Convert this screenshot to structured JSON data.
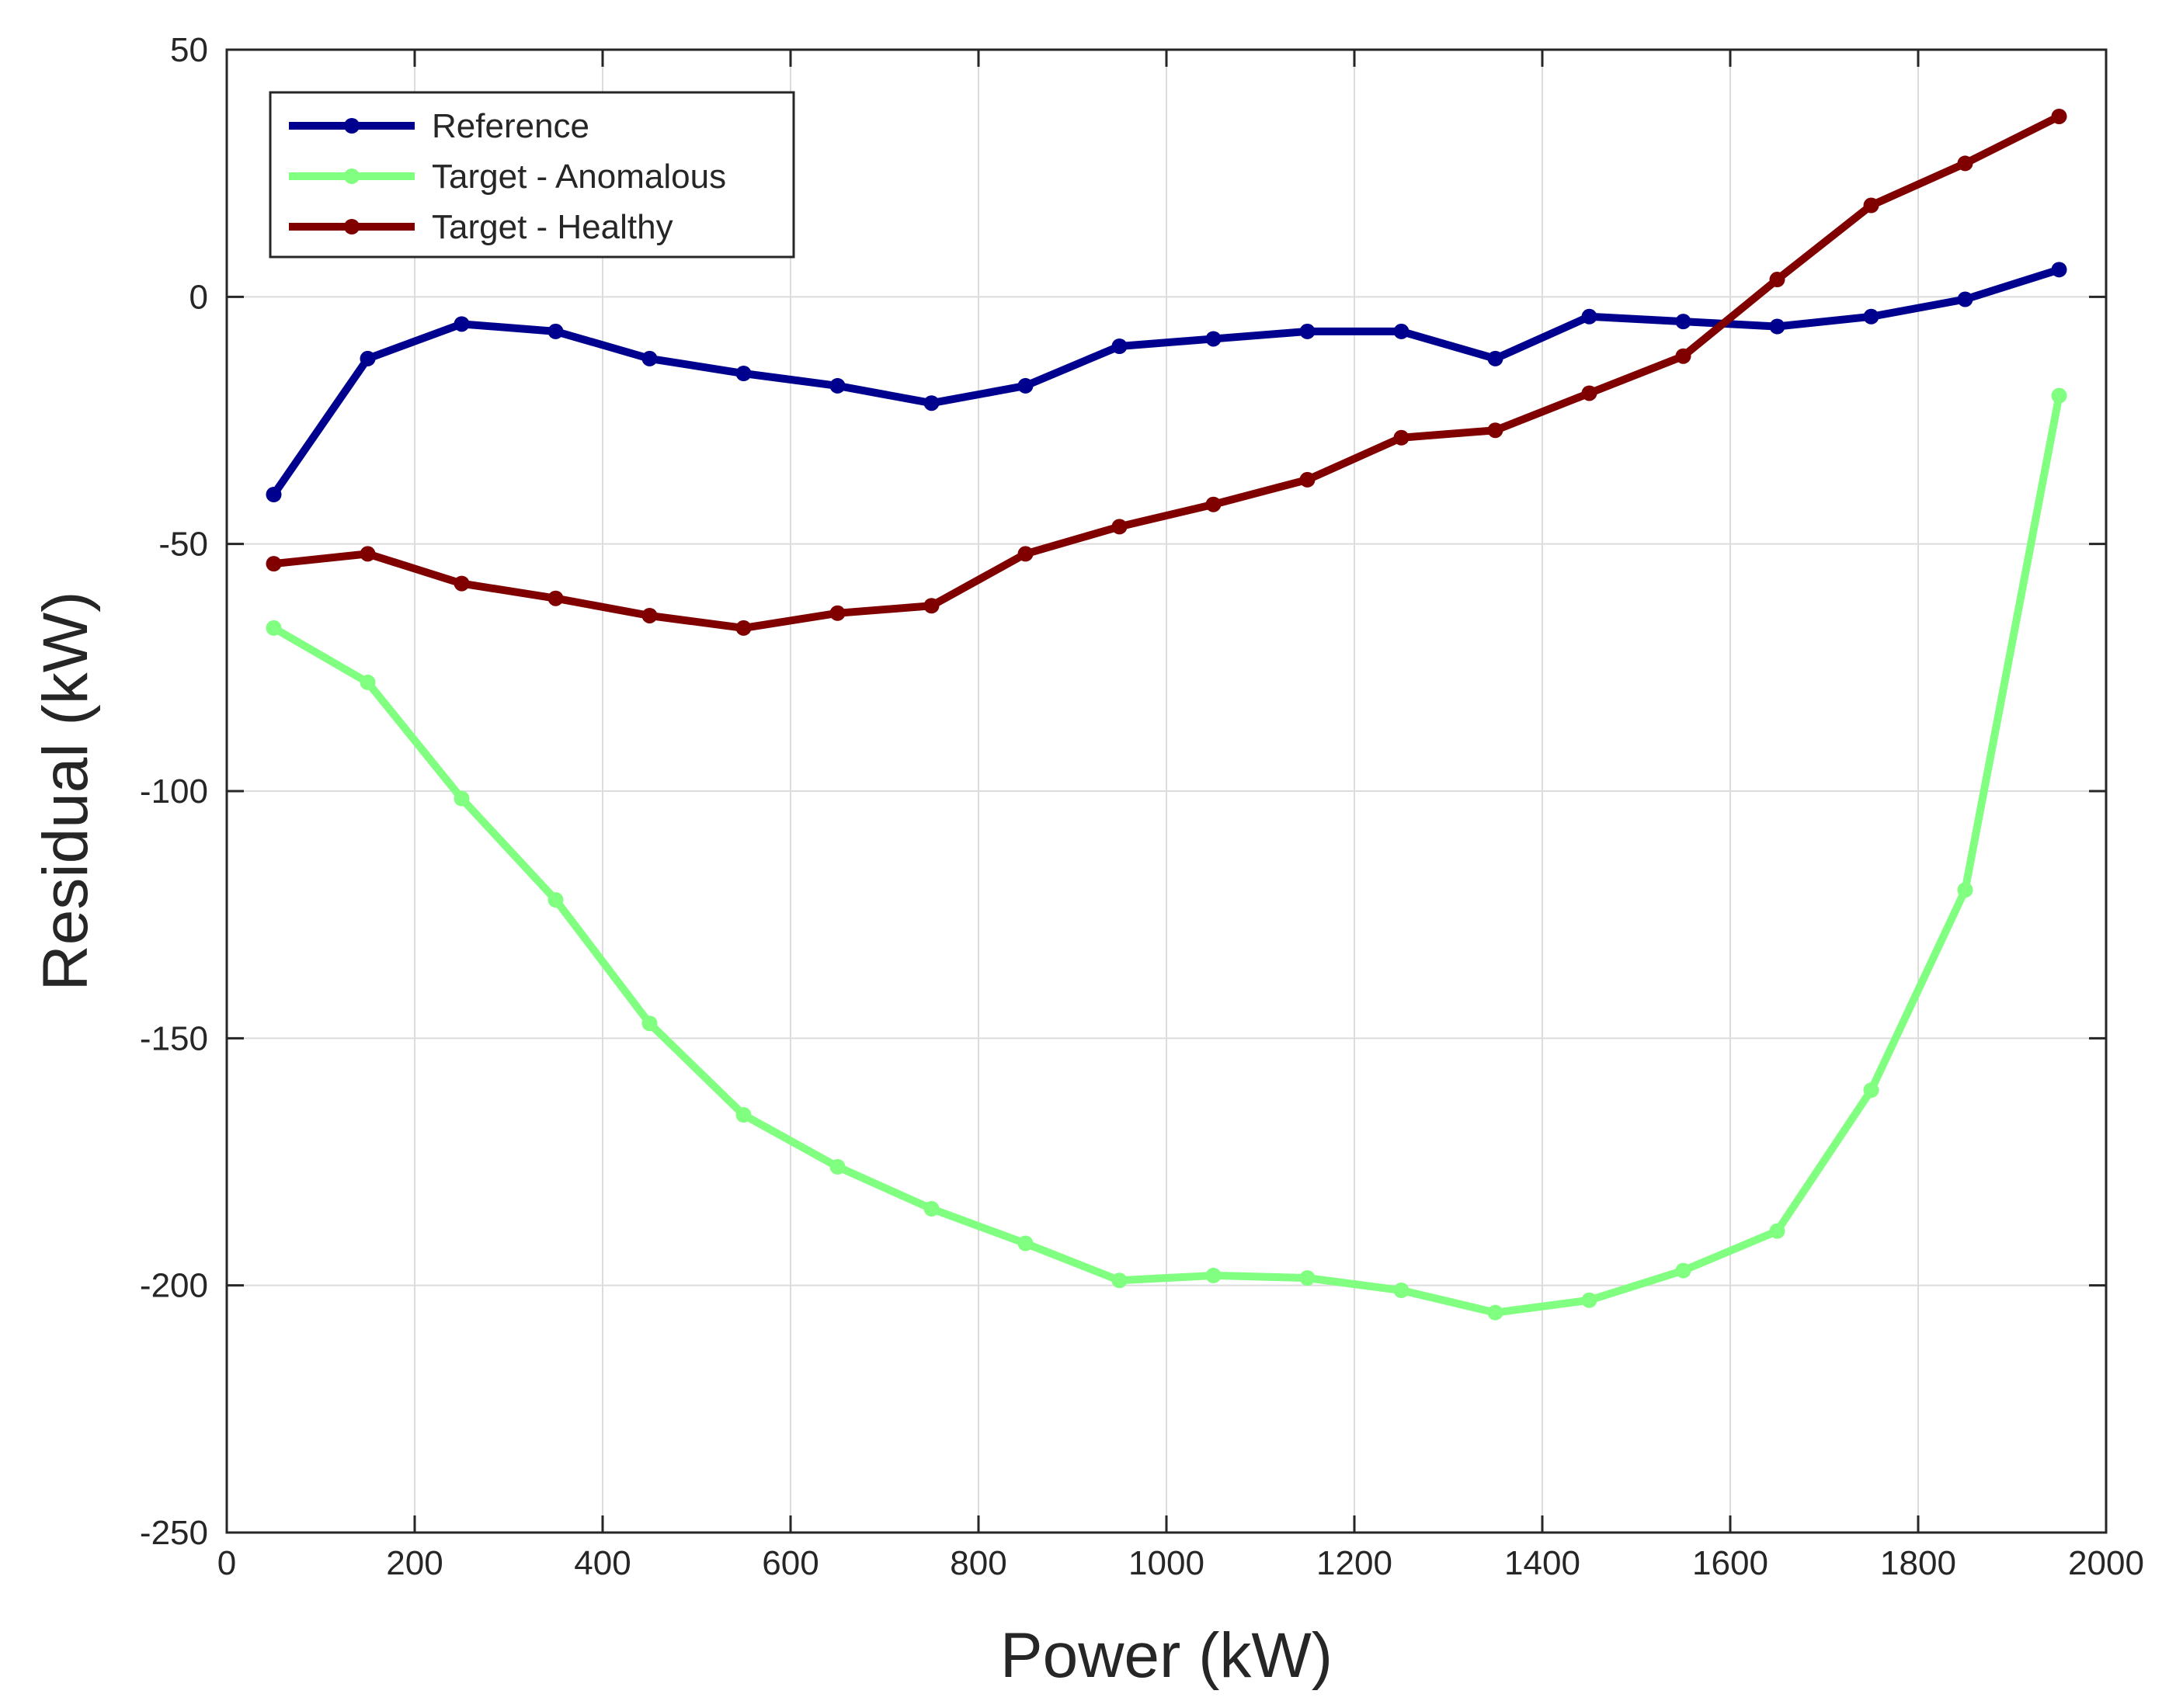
{
  "chart_data": {
    "type": "line",
    "title": "",
    "xlabel": "Power (kW)",
    "ylabel": "Residual (kW)",
    "xlim": [
      0,
      2000
    ],
    "ylim": [
      -250,
      50
    ],
    "xticks": [
      0,
      200,
      400,
      600,
      800,
      1000,
      1200,
      1400,
      1600,
      1800,
      2000
    ],
    "yticks": [
      50,
      0,
      -50,
      -100,
      -150,
      -200,
      -250
    ],
    "xtick_labels": [
      "0",
      "200",
      "400",
      "600",
      "800",
      "1000",
      "1200",
      "1400",
      "1600",
      "1800",
      "2000"
    ],
    "ytick_labels": [
      "50",
      "0",
      "-50",
      "-100",
      "-150",
      "-200",
      "-250"
    ],
    "grid": true,
    "legend_position": "top-left",
    "x": [
      50,
      150,
      250,
      350,
      450,
      550,
      650,
      750,
      850,
      950,
      1050,
      1150,
      1250,
      1350,
      1450,
      1550,
      1650,
      1750,
      1850,
      1950
    ],
    "series": [
      {
        "name": "Reference",
        "color": "#00008f",
        "values": [
          -40,
          -12.5,
          -5.5,
          -7,
          -12.5,
          -15.5,
          -18,
          -21.5,
          -18,
          -10,
          -8.5,
          -7,
          -7,
          -12.5,
          -4,
          -5,
          -6,
          -4,
          -0.5,
          5.5
        ]
      },
      {
        "name": "Target - Anomalous",
        "color": "#80ff80",
        "values": [
          -67,
          -78,
          -101.5,
          -122,
          -147,
          -165.5,
          -176,
          -184.5,
          -191.5,
          -199,
          -198,
          -198.5,
          -201,
          -205.5,
          -203,
          -197,
          -189,
          -160.5,
          -120,
          -20
        ]
      },
      {
        "name": "Target - Healthy",
        "color": "#800000",
        "values": [
          -54,
          -52,
          -58,
          -61,
          -64.5,
          -67,
          -64,
          -62.5,
          -52,
          -46.5,
          -42,
          -37,
          -28.5,
          -27,
          -19.5,
          -12,
          3.5,
          18.5,
          27,
          36.5
        ]
      }
    ]
  }
}
